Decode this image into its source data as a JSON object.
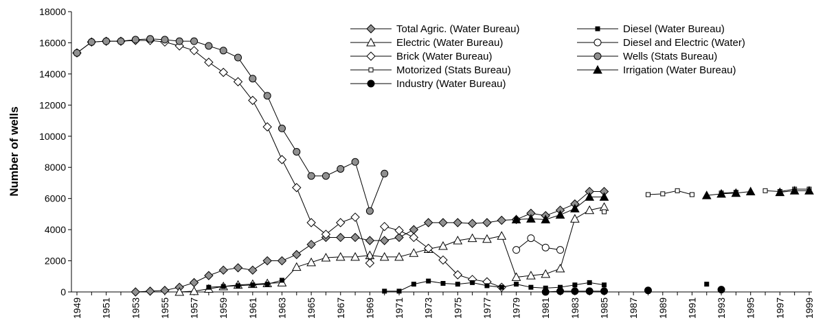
{
  "chart_data": {
    "type": "line",
    "y_label": "Number of wells",
    "x": [
      1949,
      1950,
      1951,
      1952,
      1953,
      1954,
      1955,
      1956,
      1957,
      1958,
      1959,
      1960,
      1961,
      1962,
      1963,
      1964,
      1965,
      1966,
      1967,
      1968,
      1969,
      1970,
      1971,
      1972,
      1973,
      1974,
      1975,
      1976,
      1977,
      1978,
      1979,
      1980,
      1981,
      1982,
      1983,
      1984,
      1985,
      1986,
      1987,
      1988,
      1989,
      1990,
      1991,
      1992,
      1993,
      1994,
      1995,
      1996,
      1997,
      1998,
      1999
    ],
    "xlim": [
      1949,
      1999
    ],
    "xticks": [
      1949,
      1951,
      1953,
      1955,
      1957,
      1959,
      1961,
      1963,
      1965,
      1967,
      1969,
      1971,
      1973,
      1975,
      1977,
      1979,
      1981,
      1983,
      1985,
      1987,
      1989,
      1991,
      1993,
      1995,
      1997,
      1999
    ],
    "ylim": [
      0,
      18000
    ],
    "yticks": [
      0,
      2000,
      4000,
      6000,
      8000,
      10000,
      12000,
      14000,
      16000,
      18000
    ],
    "series": [
      {
        "name": "Total Agric. (Water Bureau)",
        "marker": "diamond",
        "color": "#909090",
        "values": [
          null,
          null,
          null,
          null,
          0,
          50,
          100,
          300,
          600,
          1050,
          1400,
          1550,
          1400,
          2000,
          2000,
          2400,
          3050,
          3500,
          3500,
          3500,
          3300,
          3300,
          3500,
          4000,
          4450,
          4450,
          4450,
          4400,
          4450,
          4600,
          4650,
          5050,
          4900,
          5250,
          5650,
          6450,
          6450,
          null,
          null,
          null,
          null,
          null,
          null,
          null,
          null,
          null,
          null,
          null,
          null,
          null,
          null
        ]
      },
      {
        "name": "Electric (Water Bureau)",
        "marker": "triangle",
        "color": "#ffffff",
        "values": [
          null,
          null,
          null,
          null,
          null,
          null,
          null,
          0,
          50,
          200,
          350,
          450,
          500,
          550,
          600,
          1600,
          1900,
          2200,
          2250,
          2250,
          2350,
          2250,
          2250,
          2500,
          2750,
          2950,
          3300,
          3450,
          3400,
          3600,
          950,
          1050,
          1150,
          1500,
          4700,
          5250,
          5450,
          null,
          null,
          null,
          null,
          null,
          null,
          null,
          null,
          null,
          null,
          null,
          null,
          null,
          null
        ]
      },
      {
        "name": "Brick (Water Bureau)",
        "marker": "diamond",
        "color": "#ffffff",
        "values": [
          15350,
          16050,
          16100,
          16100,
          16150,
          16150,
          16050,
          15800,
          15500,
          14750,
          14100,
          13500,
          12300,
          10600,
          8500,
          6700,
          4450,
          3700,
          4450,
          4800,
          1850,
          4200,
          3950,
          3500,
          2800,
          2050,
          1100,
          800,
          650,
          300,
          null,
          null,
          null,
          null,
          null,
          null,
          null,
          null,
          null,
          null,
          null,
          null,
          null,
          null,
          null,
          null,
          null,
          null,
          null,
          null,
          null
        ]
      },
      {
        "name": "Motorized (Stats Bureau)",
        "marker": "square-small",
        "color": "#ffffff",
        "values": [
          null,
          null,
          null,
          null,
          null,
          null,
          null,
          null,
          null,
          null,
          null,
          null,
          null,
          null,
          null,
          null,
          null,
          null,
          null,
          null,
          null,
          null,
          null,
          null,
          null,
          null,
          null,
          null,
          null,
          null,
          4600,
          null,
          null,
          null,
          null,
          null,
          5150,
          null,
          null,
          6250,
          6300,
          6500,
          6250,
          null,
          6350,
          6400,
          null,
          6500,
          6450,
          6600,
          6600
        ]
      },
      {
        "name": "Industry (Water Bureau)",
        "marker": "circle",
        "color": "#000000",
        "values": [
          null,
          null,
          null,
          null,
          null,
          null,
          null,
          null,
          null,
          null,
          null,
          null,
          null,
          null,
          null,
          null,
          null,
          null,
          null,
          null,
          null,
          null,
          null,
          null,
          null,
          null,
          null,
          null,
          null,
          null,
          null,
          null,
          0,
          50,
          50,
          50,
          50,
          null,
          null,
          100,
          null,
          null,
          null,
          null,
          150,
          null,
          null,
          null,
          null,
          null,
          null
        ]
      },
      {
        "name": "Diesel (Water Bureau)",
        "marker": "square-small",
        "color": "#000000",
        "values": [
          null,
          null,
          null,
          null,
          null,
          null,
          null,
          null,
          null,
          300,
          350,
          400,
          450,
          500,
          750,
          null,
          null,
          null,
          null,
          null,
          null,
          50,
          50,
          500,
          700,
          550,
          500,
          600,
          400,
          300,
          500,
          300,
          250,
          300,
          450,
          600,
          450,
          null,
          null,
          null,
          null,
          null,
          null,
          500,
          null,
          null,
          null,
          null,
          null,
          null,
          null
        ]
      },
      {
        "name": "Diesel and Electric (Water)",
        "marker": "circle",
        "color": "#ffffff",
        "values": [
          null,
          null,
          null,
          null,
          null,
          null,
          null,
          null,
          null,
          null,
          null,
          null,
          null,
          null,
          null,
          null,
          null,
          null,
          null,
          null,
          null,
          null,
          null,
          null,
          null,
          null,
          null,
          null,
          null,
          null,
          2700,
          3450,
          2850,
          2700,
          null,
          null,
          null,
          null,
          null,
          null,
          null,
          null,
          null,
          null,
          null,
          null,
          null,
          null,
          null,
          null,
          null
        ]
      },
      {
        "name": "Wells (Stats Bureau)",
        "marker": "circle",
        "color": "#909090",
        "values": [
          15350,
          16050,
          16100,
          16100,
          16200,
          16250,
          16200,
          16100,
          16100,
          15800,
          15500,
          15050,
          13700,
          12600,
          10500,
          9000,
          7450,
          7450,
          7900,
          8350,
          5200,
          7600,
          null,
          null,
          null,
          null,
          null,
          null,
          null,
          null,
          null,
          null,
          null,
          null,
          null,
          null,
          null,
          null,
          null,
          null,
          null,
          null,
          null,
          null,
          null,
          null,
          null,
          null,
          null,
          null,
          null
        ]
      },
      {
        "name": "Irrigation (Water Bureau)",
        "marker": "triangle",
        "color": "#000000",
        "values": [
          null,
          null,
          null,
          null,
          null,
          null,
          null,
          null,
          null,
          null,
          null,
          null,
          null,
          null,
          null,
          null,
          null,
          null,
          null,
          null,
          null,
          null,
          null,
          null,
          null,
          null,
          null,
          null,
          null,
          null,
          4650,
          4700,
          4650,
          4950,
          5350,
          6100,
          6100,
          null,
          null,
          null,
          null,
          null,
          null,
          6200,
          6300,
          6350,
          6450,
          null,
          6400,
          6500,
          6500
        ]
      }
    ]
  }
}
